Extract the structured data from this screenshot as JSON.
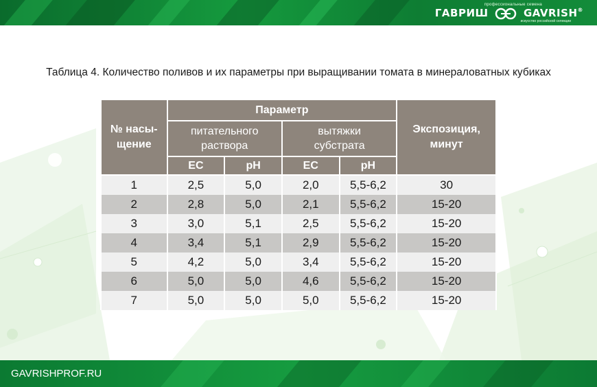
{
  "brand": {
    "tagline_top": "профессиональные семена",
    "name_ru": "ГАВРИШ",
    "name_en": "GAVRISH",
    "tagline_bottom": "искусство российской селекции"
  },
  "title": "Таблица 4. Количество поливов и их параметры при выращивании томата в минераловатных кубиках",
  "table": {
    "col_irrigation": "№ насы-щение",
    "col_parameter": "Параметр",
    "col_nutrient": "питательного раствора",
    "col_substrate": "вытяжки субстрата",
    "col_exposure": "Экспозиция, минут",
    "sub_ec_1": "EC",
    "sub_ph_1": "pH",
    "sub_ec_2": "EC",
    "sub_ph_2": "pH",
    "rows": [
      [
        "1",
        "2,5",
        "5,0",
        "2,0",
        "5,5-6,2",
        "30"
      ],
      [
        "2",
        "2,8",
        "5,0",
        "2,1",
        "5,5-6,2",
        "15-20"
      ],
      [
        "3",
        "3,0",
        "5,1",
        "2,5",
        "5,5-6,2",
        "15-20"
      ],
      [
        "4",
        "3,4",
        "5,1",
        "2,9",
        "5,5-6,2",
        "15-20"
      ],
      [
        "5",
        "4,2",
        "5,0",
        "3,4",
        "5,5-6,2",
        "15-20"
      ],
      [
        "6",
        "5,0",
        "5,0",
        "4,6",
        "5,5-6,2",
        "15-20"
      ],
      [
        "7",
        "5,0",
        "5,0",
        "5,0",
        "5,5-6,2",
        "15-20"
      ]
    ]
  },
  "footer": {
    "site": "GAVRISHPROF.RU"
  },
  "colors": {
    "header_bg": "#8e857c",
    "row_light": "#efefef",
    "row_dark": "#c8c7c5",
    "brand_green": "#129236"
  }
}
